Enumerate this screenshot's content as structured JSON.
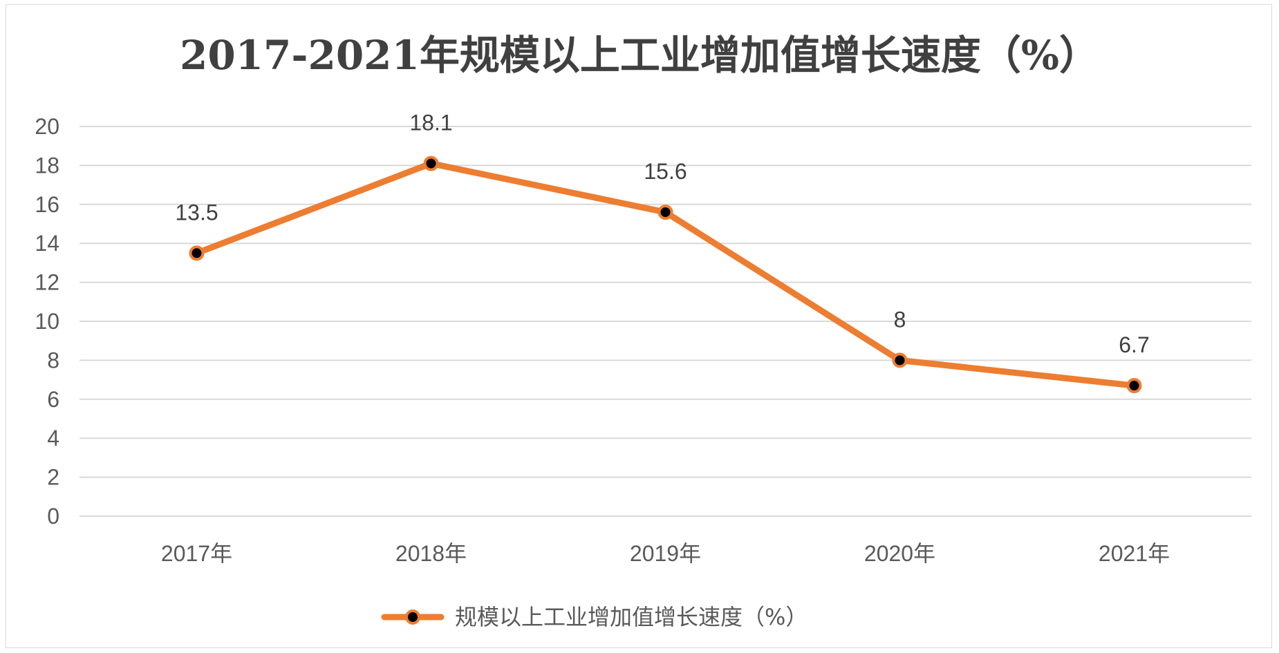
{
  "chart_data": {
    "type": "line",
    "title": "2017-2021年规模以上工业增加值增长速度（%）",
    "categories": [
      "2017年",
      "2018年",
      "2019年",
      "2020年",
      "2021年"
    ],
    "series": [
      {
        "name": "规模以上工业增加值增长速度（%）",
        "values": [
          13.5,
          18.1,
          15.6,
          8,
          6.7
        ]
      }
    ],
    "data_labels": [
      "13.5",
      "18.1",
      "15.6",
      "8",
      "6.7"
    ],
    "y_ticks": [
      "0",
      "2",
      "4",
      "6",
      "8",
      "10",
      "12",
      "14",
      "16",
      "18",
      "20"
    ],
    "ylim": [
      0,
      20
    ],
    "grid": true,
    "legend_position": "bottom",
    "colors": {
      "line": "#ed7d31",
      "marker": "#000000",
      "grid": "#d9d9d9"
    }
  }
}
